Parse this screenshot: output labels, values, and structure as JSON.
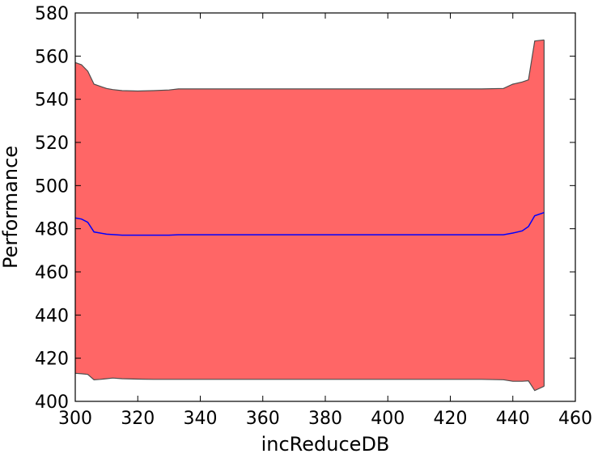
{
  "chart_data": {
    "type": "area",
    "xlabel": "incReduceDB",
    "ylabel": "Performance",
    "xlim": [
      300,
      460
    ],
    "ylim": [
      400,
      580
    ],
    "xticks": [
      "300",
      "320",
      "340",
      "360",
      "380",
      "400",
      "420",
      "440",
      "460"
    ],
    "yticks": [
      "400",
      "420",
      "440",
      "460",
      "480",
      "500",
      "520",
      "540",
      "560",
      "580"
    ],
    "grid": false,
    "legend": "none",
    "colors": {
      "band_fill": "#ff6666",
      "band_edge": "#4d4d4d",
      "mean_line": "#0000ff"
    },
    "x": [
      300,
      302,
      304,
      306,
      308,
      310,
      312,
      315,
      320,
      325,
      330,
      333,
      340,
      350,
      360,
      370,
      380,
      390,
      400,
      410,
      420,
      430,
      437,
      440,
      443,
      445,
      447,
      450
    ],
    "series": [
      {
        "role": "upper",
        "values": [
          557,
          556,
          553,
          547,
          546,
          545,
          544.5,
          544,
          543.8,
          544,
          544.3,
          544.8,
          544.8,
          544.8,
          544.8,
          544.8,
          544.8,
          544.8,
          544.8,
          544.8,
          544.8,
          544.8,
          545,
          547,
          548,
          549,
          567,
          567.5
        ]
      },
      {
        "role": "mean",
        "values": [
          485,
          484.5,
          483,
          478.5,
          478,
          477.5,
          477.3,
          477,
          477,
          477,
          477,
          477.2,
          477.2,
          477.2,
          477.2,
          477.2,
          477.2,
          477.2,
          477.2,
          477.2,
          477.2,
          477.2,
          477.2,
          478,
          479,
          481,
          486,
          487.5
        ]
      },
      {
        "role": "lower",
        "values": [
          413,
          412.8,
          412.5,
          410,
          410.2,
          410.5,
          410.8,
          410.5,
          410.3,
          410.2,
          410.2,
          410.2,
          410.2,
          410.2,
          410.2,
          410.2,
          410.2,
          410.2,
          410.2,
          410.2,
          410.2,
          410.2,
          410,
          409.3,
          409.3,
          409.5,
          405,
          407
        ]
      }
    ]
  }
}
